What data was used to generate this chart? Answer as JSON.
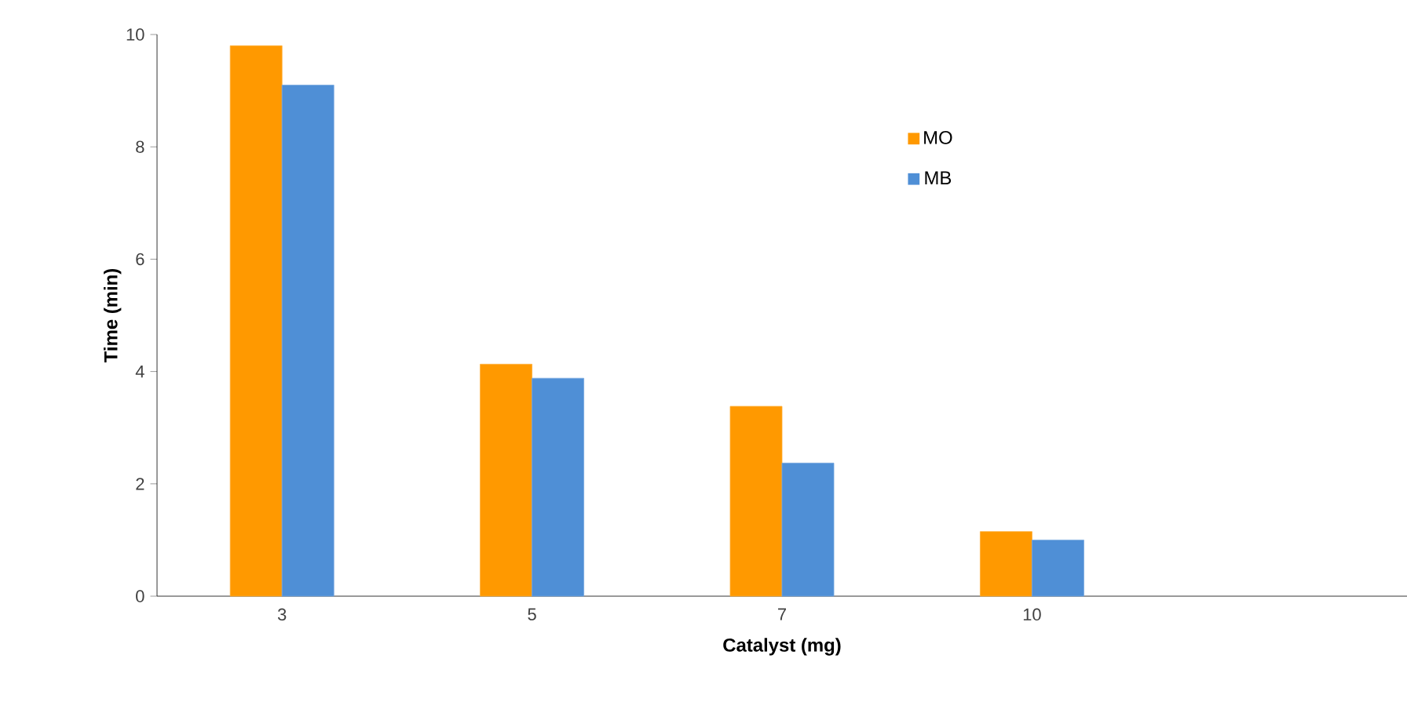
{
  "chart_data": {
    "type": "bar",
    "xlabel": "Catalyst (mg)",
    "ylabel": "Time (min)",
    "categories": [
      "3",
      "5",
      "7",
      "10",
      null
    ],
    "series": [
      {
        "name": "MO",
        "color": "#ff9900",
        "values": [
          9.8,
          4.13,
          3.38,
          1.15,
          null
        ]
      },
      {
        "name": "MB",
        "color": "#4f8fd6",
        "values": [
          9.1,
          3.88,
          2.37,
          1.0,
          null
        ]
      }
    ],
    "ylim": [
      0,
      10
    ],
    "yticks": [
      0,
      2,
      4,
      6,
      8,
      10
    ],
    "legend": "top"
  }
}
